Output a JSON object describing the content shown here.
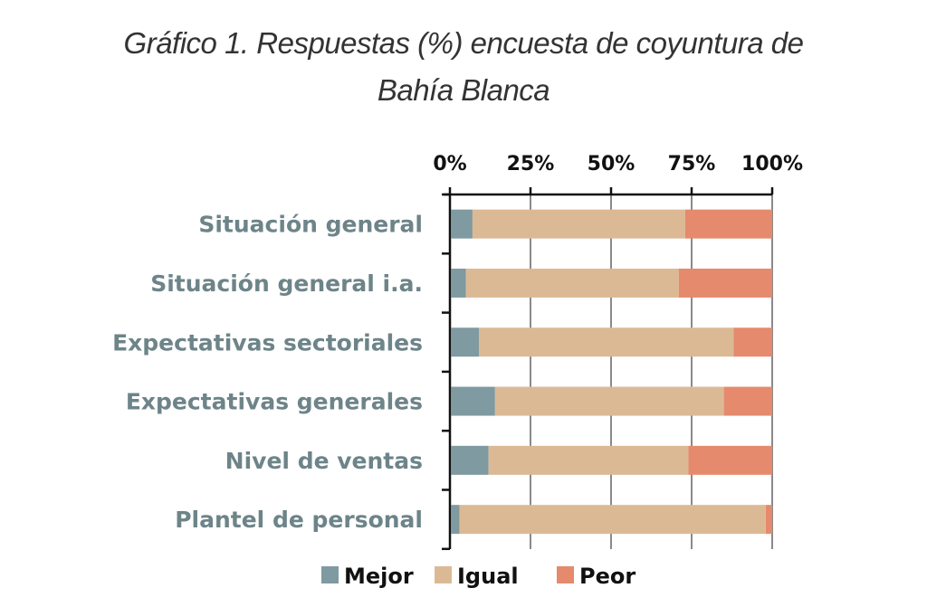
{
  "chart_data": {
    "type": "bar",
    "orientation": "horizontal-stacked-100",
    "title": "Gráfico 1. Respuestas (%) encuesta de coyuntura de Bahía Blanca",
    "title_lines": [
      "Gráfico 1. Respuestas (%) encuesta de coyuntura de",
      "Bahía Blanca"
    ],
    "categories": [
      "Situación general",
      "Situación general i.a.",
      "Expectativas sectoriales",
      "Expectativas generales",
      "Nivel de ventas",
      "Plantel de personal"
    ],
    "series": [
      {
        "name": "Mejor",
        "color": "#7f9aa0",
        "values": [
          7,
          5,
          9,
          14,
          12,
          3
        ]
      },
      {
        "name": "Igual",
        "color": "#dcb995",
        "values": [
          66,
          66,
          79,
          71,
          62,
          95
        ]
      },
      {
        "name": "Peor",
        "color": "#e58a6c",
        "values": [
          27,
          29,
          12,
          15,
          26,
          2
        ]
      }
    ],
    "xticks": [
      "0%",
      "25%",
      "50%",
      "75%",
      "100%"
    ],
    "xlim": [
      0,
      100
    ],
    "xaxis_position": "top",
    "grid": true,
    "legend": "bottom"
  }
}
